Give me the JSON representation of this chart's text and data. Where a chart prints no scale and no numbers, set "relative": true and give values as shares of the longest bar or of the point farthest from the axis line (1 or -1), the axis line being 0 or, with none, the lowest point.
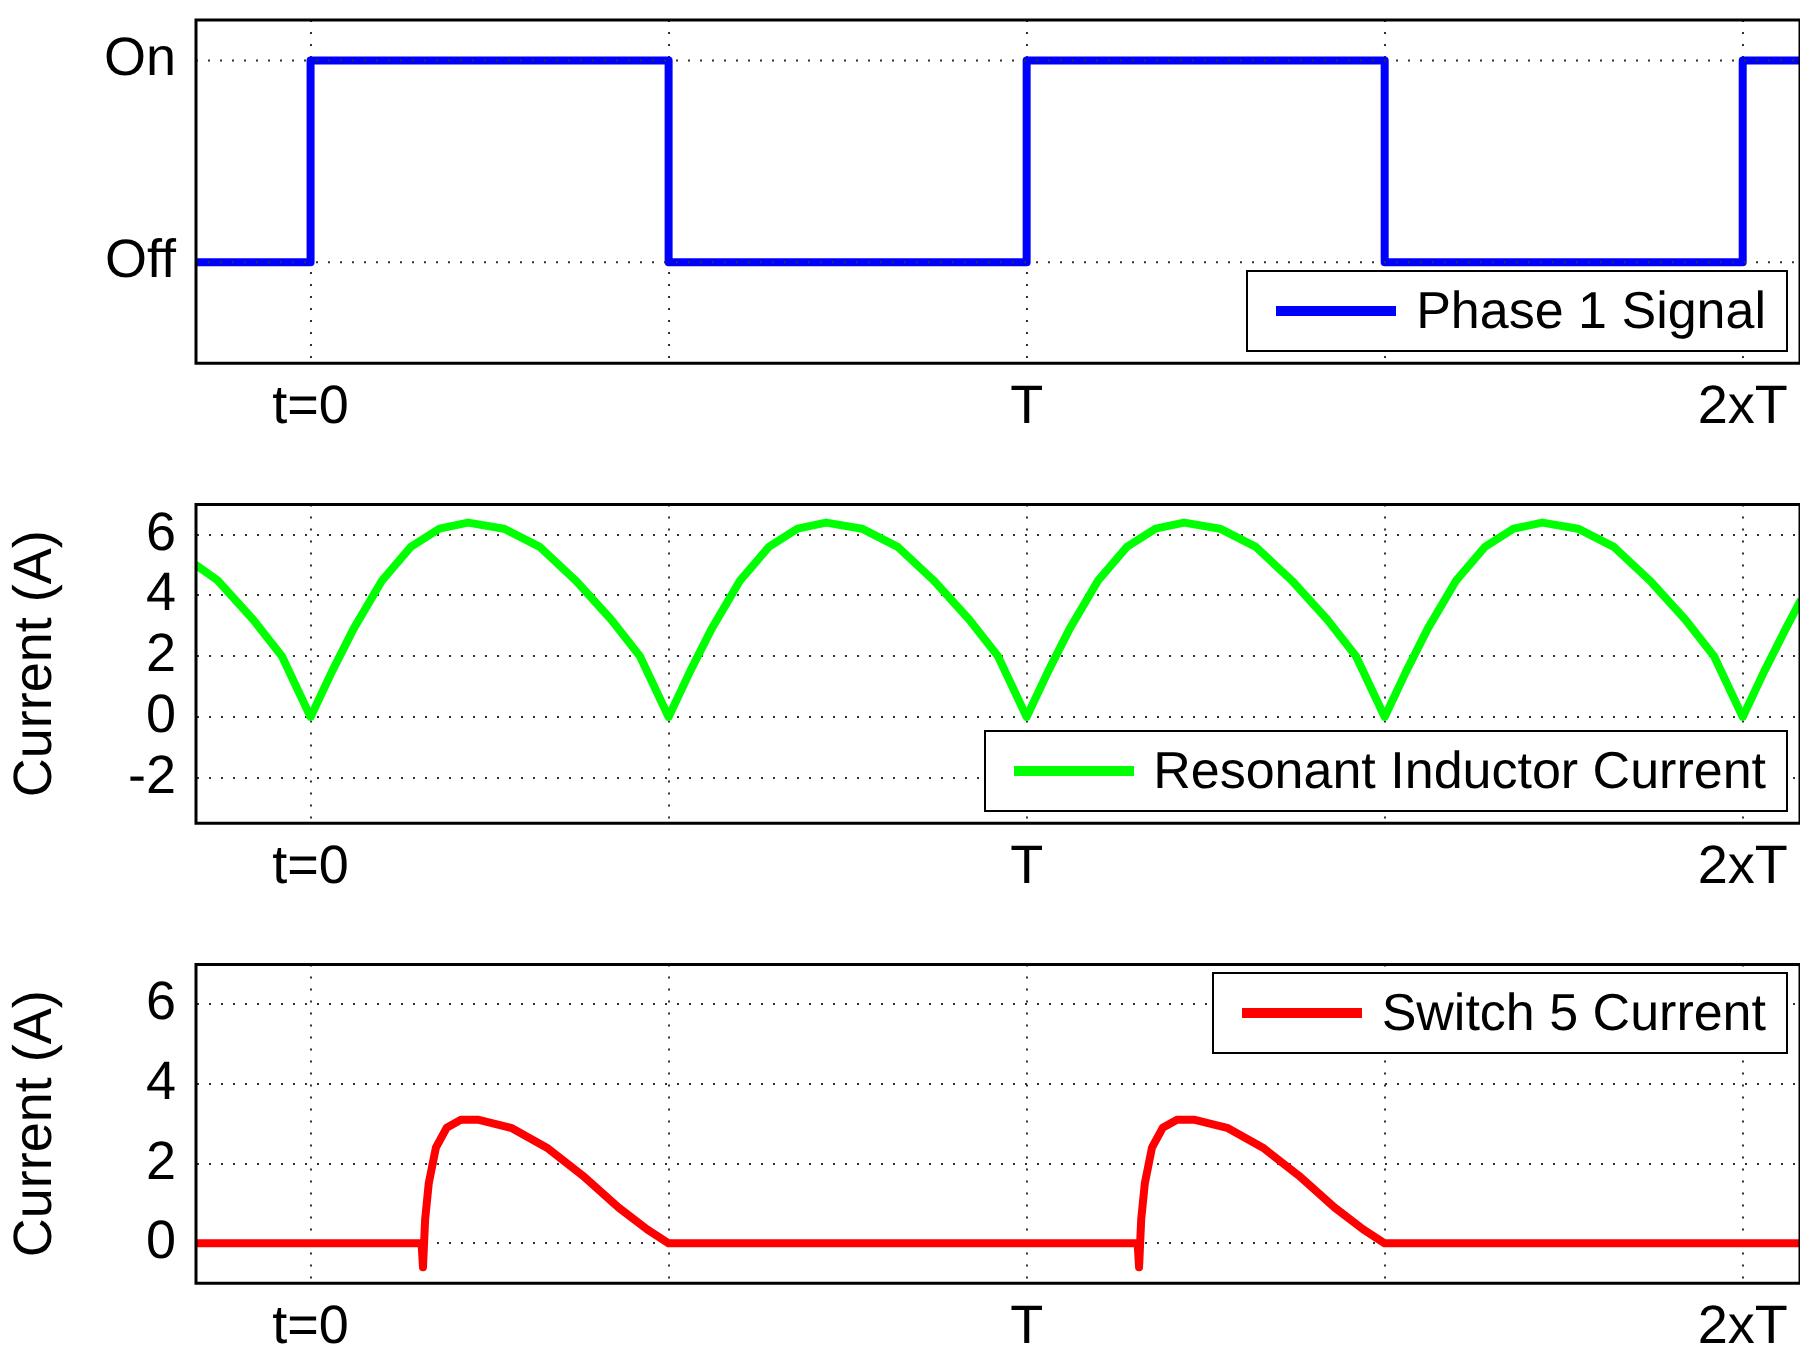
{
  "chart_data": [
    {
      "type": "step",
      "x": [
        -0.16,
        0,
        0.5,
        1,
        1.5,
        2,
        2.08
      ],
      "series": [
        {
          "name": "Phase 1 Signal",
          "color": "#0000ff",
          "values": [
            0,
            1,
            0,
            1,
            0,
            1,
            1
          ]
        }
      ],
      "xlim": [
        -0.16,
        2.08
      ],
      "xticks": [
        {
          "value": 0,
          "label": "t=0"
        },
        {
          "value": 0.5,
          "label": null
        },
        {
          "value": 1,
          "label": "T"
        },
        {
          "value": 1.5,
          "label": null
        },
        {
          "value": 2,
          "label": "2xT"
        }
      ],
      "relative": true,
      "annotations": [
        "On",
        "Off"
      ],
      "grid": true,
      "legend": "bottom right"
    },
    {
      "type": "line",
      "ylabel": "Current (A)",
      "x": [
        -0.16,
        -0.13,
        -0.08,
        -0.04,
        0,
        0.03,
        0.06,
        0.1,
        0.14,
        0.18,
        0.22,
        0.27,
        0.32,
        0.37,
        0.42,
        0.46,
        0.5,
        0.53,
        0.56,
        0.6,
        0.64,
        0.68,
        0.72,
        0.77,
        0.82,
        0.87,
        0.92,
        0.96,
        1,
        1.03,
        1.06,
        1.1,
        1.14,
        1.18,
        1.22,
        1.27,
        1.32,
        1.37,
        1.42,
        1.46,
        1.5,
        1.53,
        1.56,
        1.6,
        1.64,
        1.68,
        1.72,
        1.77,
        1.82,
        1.87,
        1.92,
        1.96,
        2,
        2.03,
        2.06,
        2.08
      ],
      "series": [
        {
          "name": "Resonant Inductor Current",
          "color": "#00ff00",
          "values": [
            5.0,
            4.5,
            3.2,
            2.0,
            0,
            1.5,
            2.9,
            4.5,
            5.6,
            6.2,
            6.4,
            6.2,
            5.6,
            4.5,
            3.2,
            2.0,
            0,
            1.5,
            2.9,
            4.5,
            5.6,
            6.2,
            6.4,
            6.2,
            5.6,
            4.5,
            3.2,
            2.0,
            0,
            1.5,
            2.9,
            4.5,
            5.6,
            6.2,
            6.4,
            6.2,
            5.6,
            4.5,
            3.2,
            2.0,
            0,
            1.5,
            2.9,
            4.5,
            5.6,
            6.2,
            6.4,
            6.2,
            5.6,
            4.5,
            3.2,
            2.0,
            0,
            1.5,
            2.9,
            3.8
          ]
        }
      ],
      "xlim": [
        -0.16,
        2.08
      ],
      "xticks": [
        {
          "value": 0,
          "label": "t=0"
        },
        {
          "value": 0.5,
          "label": null
        },
        {
          "value": 1,
          "label": "T"
        },
        {
          "value": 1.5,
          "label": null
        },
        {
          "value": 2,
          "label": "2xT"
        }
      ],
      "ylim": [
        -3.5,
        7
      ],
      "yticks": [
        -2,
        0,
        2,
        4,
        6
      ],
      "grid": true,
      "legend": "bottom right"
    },
    {
      "type": "line",
      "ylabel": "Current (A)",
      "x": [
        -0.16,
        0.155,
        0.157,
        0.16,
        0.165,
        0.175,
        0.19,
        0.21,
        0.235,
        0.28,
        0.33,
        0.38,
        0.43,
        0.47,
        0.5,
        1.155,
        1.157,
        1.16,
        1.165,
        1.175,
        1.19,
        1.21,
        1.235,
        1.28,
        1.33,
        1.38,
        1.43,
        1.47,
        1.5,
        2.08
      ],
      "series": [
        {
          "name": "Switch 5 Current",
          "color": "#ff0000",
          "values": [
            0,
            0,
            -0.6,
            0.6,
            1.5,
            2.4,
            2.9,
            3.1,
            3.1,
            2.9,
            2.4,
            1.7,
            0.9,
            0.35,
            0,
            0,
            -0.6,
            0.6,
            1.5,
            2.4,
            2.9,
            3.1,
            3.1,
            2.9,
            2.4,
            1.7,
            0.9,
            0.35,
            0,
            0
          ]
        }
      ],
      "xlim": [
        -0.16,
        2.08
      ],
      "xticks": [
        {
          "value": 0,
          "label": "t=0"
        },
        {
          "value": 0.5,
          "label": null
        },
        {
          "value": 1,
          "label": "T"
        },
        {
          "value": 1.5,
          "label": null
        },
        {
          "value": 2,
          "label": "2xT"
        }
      ],
      "ylim": [
        -1,
        7
      ],
      "yticks": [
        0,
        2,
        4,
        6
      ],
      "grid": true,
      "legend": "top right"
    }
  ]
}
